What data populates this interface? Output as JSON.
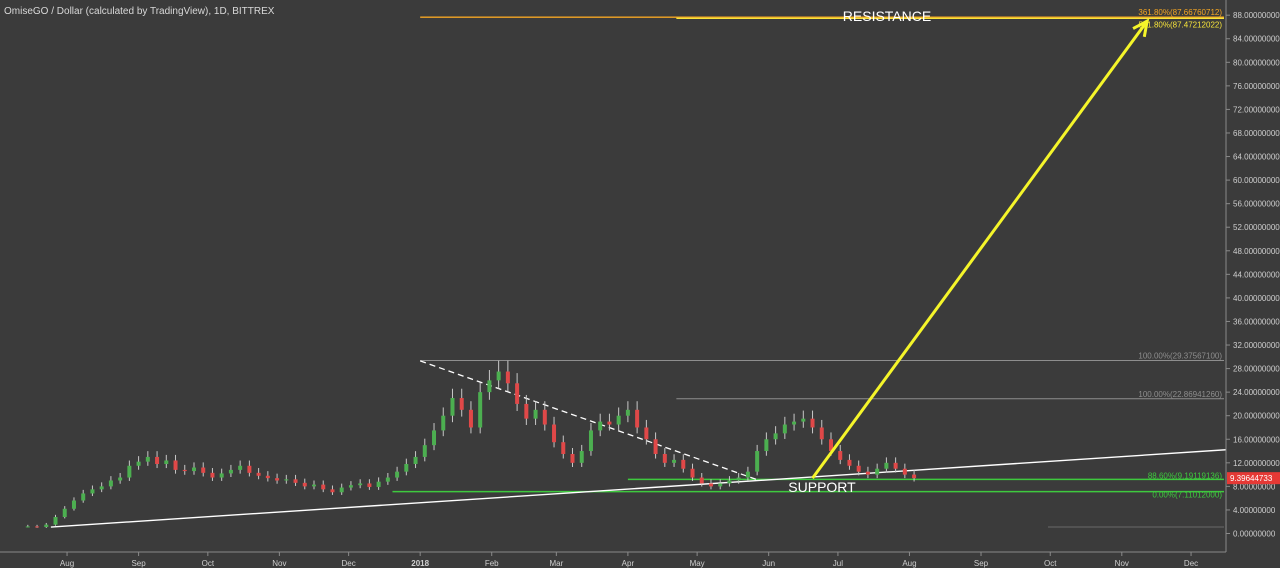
{
  "chart_data": {
    "type": "candlestick",
    "title": "OmiseGO / Dollar (calculated by TradingView), 1D, BITTREX",
    "xlabel": "",
    "ylabel": "",
    "x_ticks": [
      "Aug",
      "Sep",
      "Oct",
      "Nov",
      "Dec",
      "2018",
      "Feb",
      "Mar",
      "Apr",
      "May",
      "Jun",
      "Jul",
      "Aug",
      "Sep",
      "Oct",
      "Nov",
      "Dec"
    ],
    "ylim": [
      -2,
      92
    ],
    "y_ticks": [
      "0.00000000",
      "4.00000000",
      "8.00000000",
      "12.00000000",
      "16.00000000",
      "20.00000000",
      "24.00000000",
      "28.00000000",
      "32.00000000",
      "36.00000000",
      "40.00000000",
      "44.00000000",
      "48.00000000",
      "52.00000000",
      "56.00000000",
      "60.00000000",
      "64.00000000",
      "68.00000000",
      "72.00000000",
      "76.00000000",
      "80.00000000",
      "84.00000000",
      "88.00000000",
      "92.00000000"
    ],
    "current_price": {
      "label": "9.39644733",
      "value": 9.39644733,
      "color": "#e53935"
    },
    "series": [
      {
        "x_start": "2017-07-15",
        "step_days": 4,
        "close": [
          1.2,
          1.1,
          1.5,
          2.8,
          4.2,
          5.6,
          6.8,
          7.5,
          8.0,
          9.0,
          9.5,
          11.5,
          12.2,
          13.0,
          11.8,
          12.4,
          10.8,
          10.6,
          11.2,
          10.3,
          9.5,
          10.2,
          10.8,
          11.5,
          10.3,
          9.8,
          9.4,
          9.0,
          9.2,
          8.6,
          8.0,
          8.3,
          7.5,
          7.0,
          7.8,
          8.2,
          8.5,
          7.9,
          8.8,
          9.5,
          10.5,
          11.8,
          13.0,
          15.0,
          17.5,
          20.0,
          23.0,
          21.0,
          18.0,
          24.0,
          26.0,
          27.5,
          25.5,
          22.0,
          19.5,
          21.0,
          18.5,
          15.5,
          13.5,
          12.0,
          14.0,
          17.5,
          19.0,
          18.5,
          20.0,
          21.0,
          18.0,
          16.0,
          13.5,
          12.0,
          12.5,
          11.0,
          9.5,
          8.5,
          8.0,
          8.5,
          9.0,
          9.5,
          10.5,
          14.0,
          16.0,
          17.0,
          18.5,
          19.0,
          19.5,
          18.0,
          16.0,
          14.0,
          12.5,
          11.5,
          10.5,
          10.0,
          11.0,
          12.0,
          11.0,
          10.0,
          9.4
        ]
      }
    ],
    "overlays": {
      "resistance_label": "RESISTANCE",
      "support_label": "SUPPORT",
      "fib_levels": [
        {
          "label": "361.80%(87.66760712)",
          "value": 87.66760712,
          "color": "#f5a623",
          "from": "2018-01-01"
        },
        {
          "label": "561.80%(87.47212022)",
          "value": 87.47212022,
          "color": "#f7e43a",
          "from": "2018-04-22"
        },
        {
          "label": "100.00%(29.37567100)",
          "value": 29.375671,
          "color": "#8e8e8e",
          "from": "2018-01-01"
        },
        {
          "label": "100.00%(22.86941260)",
          "value": 22.8694126,
          "color": "#8e8e8e",
          "from": "2018-04-22"
        },
        {
          "label": "88.60%(9.19119136)",
          "value": 9.19119136,
          "color": "#3ec93e",
          "from": "2018-04-01"
        },
        {
          "label": "0.00%(7.11012000)",
          "value": 7.11012,
          "color": "#3ec93e",
          "from": "2017-12-20"
        }
      ],
      "trend_line": {
        "from": [
          "2017-07-25",
          1.1
        ],
        "to": [
          "2018-12-31",
          14.6
        ],
        "color": "#ffffff"
      },
      "downtrend_line": {
        "from": [
          "2018-01-01",
          29.3
        ],
        "to": [
          "2018-05-28",
          9.0
        ],
        "color": "#ffffff"
      },
      "arrow": {
        "from": [
          "2018-06-20",
          9.4
        ],
        "to": [
          "2018-11-12",
          87.0
        ],
        "color": "#f5f52a"
      }
    }
  }
}
